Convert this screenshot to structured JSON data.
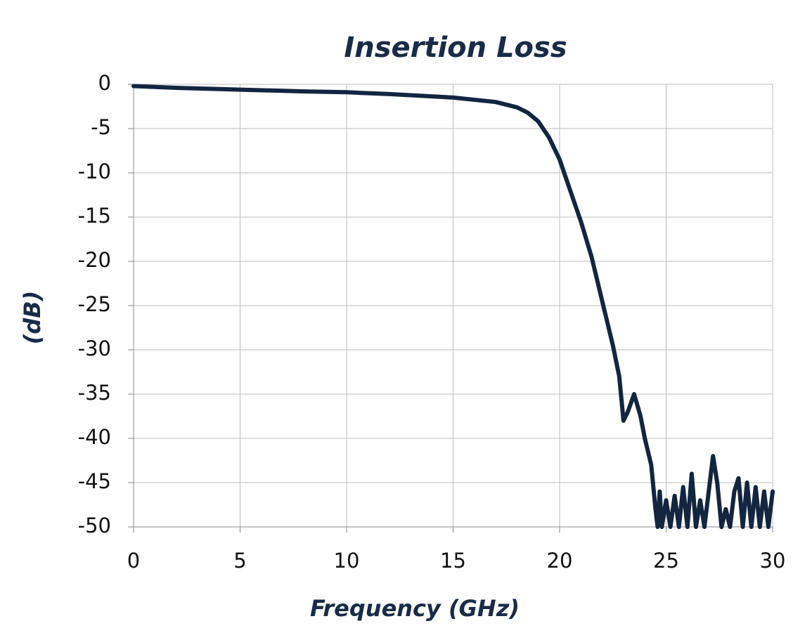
{
  "chart_data": {
    "type": "line",
    "title": "Insertion Loss",
    "x_label": "Frequency (GHz)",
    "y_label": "(dB)",
    "x": [
      0,
      2,
      5,
      8,
      10,
      12,
      15,
      17,
      18,
      18.5,
      19,
      19.5,
      20,
      20.5,
      21,
      21.5,
      22,
      22.5,
      22.8,
      23,
      23.2,
      23.5,
      23.8,
      24,
      24.3,
      24.5,
      24.6,
      24.7,
      24.8,
      25,
      25.2,
      25.4,
      25.6,
      25.8,
      26,
      26.2,
      26.4,
      26.6,
      26.8,
      27,
      27.2,
      27.4,
      27.6,
      27.8,
      28,
      28.2,
      28.4,
      28.6,
      28.8,
      29,
      29.2,
      29.4,
      29.6,
      29.8,
      30
    ],
    "values": [
      -0.2,
      -0.4,
      -0.6,
      -0.8,
      -0.9,
      -1.1,
      -1.5,
      -2,
      -2.6,
      -3.2,
      -4.2,
      -6,
      -8.5,
      -12,
      -15.5,
      -19.5,
      -24.5,
      -29.5,
      -33,
      -38,
      -37,
      -35,
      -37.5,
      -40,
      -43,
      -48,
      -50,
      -46,
      -50,
      -47,
      -50,
      -46.5,
      -50,
      -45.5,
      -50,
      -44,
      -50,
      -47,
      -50,
      -46,
      -42,
      -45,
      -50,
      -48,
      -50,
      -46,
      -44.5,
      -50,
      -45,
      -50,
      -45.5,
      -50,
      -46,
      -50,
      -46
    ],
    "color": "#13253f",
    "xlim": [
      0,
      30
    ],
    "xticks": [
      0,
      5,
      10,
      15,
      20,
      25,
      30
    ],
    "ylim": [
      -50,
      0
    ],
    "yticks": [
      0,
      -5,
      -10,
      -15,
      -20,
      -25,
      -30,
      -35,
      -40,
      -45,
      -50
    ],
    "grid": true
  }
}
